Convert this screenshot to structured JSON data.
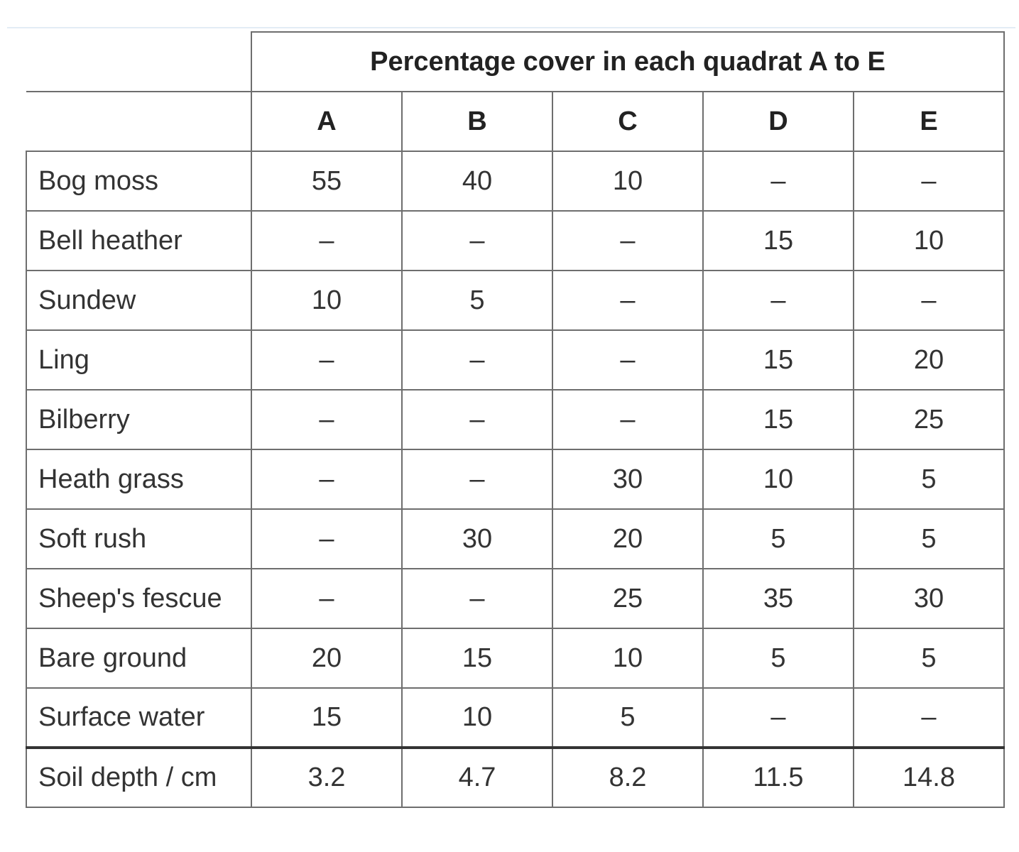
{
  "table": {
    "header": "Percentage cover in each quadrat A to E",
    "columns": [
      "A",
      "B",
      "C",
      "D",
      "E"
    ],
    "rows": [
      {
        "label": "Bog moss",
        "values": [
          "55",
          "40",
          "10",
          "–",
          "–"
        ]
      },
      {
        "label": "Bell heather",
        "values": [
          "–",
          "–",
          "–",
          "15",
          "10"
        ]
      },
      {
        "label": "Sundew",
        "values": [
          "10",
          "5",
          "–",
          "–",
          "–"
        ]
      },
      {
        "label": "Ling",
        "values": [
          "–",
          "–",
          "–",
          "15",
          "20"
        ]
      },
      {
        "label": "Bilberry",
        "values": [
          "–",
          "–",
          "–",
          "15",
          "25"
        ]
      },
      {
        "label": "Heath grass",
        "values": [
          "–",
          "–",
          "30",
          "10",
          "5"
        ]
      },
      {
        "label": "Soft rush",
        "values": [
          "–",
          "30",
          "20",
          "5",
          "5"
        ]
      },
      {
        "label": "Sheep's fescue",
        "values": [
          "–",
          "–",
          "25",
          "35",
          "30"
        ]
      },
      {
        "label": "Bare ground",
        "values": [
          "20",
          "15",
          "10",
          "5",
          "5"
        ]
      },
      {
        "label": "Surface water",
        "values": [
          "15",
          "10",
          "5",
          "–",
          "–"
        ]
      }
    ],
    "footer_row": {
      "label": "Soil depth / cm",
      "values": [
        "3.2",
        "4.7",
        "8.2",
        "11.5",
        "14.8"
      ]
    }
  }
}
